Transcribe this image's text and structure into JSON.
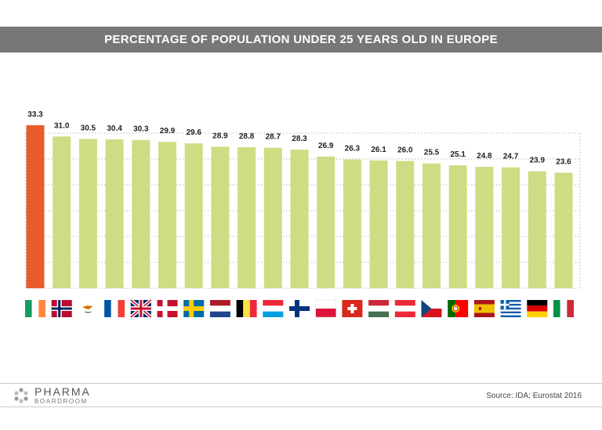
{
  "chart_data": {
    "type": "bar",
    "title": "PERCENTAGE OF POPULATION UNDER 25 YEARS OLD IN EUROPE",
    "categories": [
      "Ireland",
      "Norway",
      "Cyprus",
      "France",
      "United Kingdom",
      "Denmark",
      "Sweden",
      "Netherlands",
      "Belgium",
      "Luxembourg",
      "Finland",
      "Poland",
      "Switzerland",
      "Hungary",
      "Austria",
      "Czech Republic",
      "Portugal",
      "Spain",
      "Greece",
      "Germany",
      "Italy"
    ],
    "values": [
      33.3,
      31.0,
      30.5,
      30.4,
      30.3,
      29.9,
      29.6,
      28.9,
      28.8,
      28.7,
      28.3,
      26.9,
      26.3,
      26.1,
      26.0,
      25.5,
      25.1,
      24.8,
      24.7,
      23.9,
      23.6
    ],
    "labels": [
      "33.3",
      "31.0",
      "30.5",
      "30.4",
      "30.3",
      "29.9",
      "29.6",
      "28.9",
      "28.8",
      "28.7",
      "28.3",
      "26.9",
      "26.3",
      "26.1",
      "26.0",
      "25.5",
      "25.1",
      "24.8",
      "24.7",
      "23.9",
      "23.6"
    ],
    "highlight_color": "#e85b2c",
    "bar_color": "#cddd84",
    "grid": true,
    "ylim": [
      0,
      35
    ]
  },
  "flags": [
    "ireland-flag",
    "norway-flag",
    "cyprus-flag",
    "france-flag",
    "uk-flag",
    "denmark-flag",
    "sweden-flag",
    "netherlands-flag",
    "belgium-flag",
    "luxembourg-flag",
    "finland-flag",
    "poland-flag",
    "switzerland-flag",
    "hungary-flag",
    "austria-flag",
    "czech-flag",
    "portugal-flag",
    "spain-flag",
    "greece-flag",
    "germany-flag",
    "italy-flag"
  ],
  "footer": {
    "logo_main": "PHARMA",
    "logo_sub": "BOARDROOM",
    "source": "Source:  IDA; Eurostat 2016"
  }
}
